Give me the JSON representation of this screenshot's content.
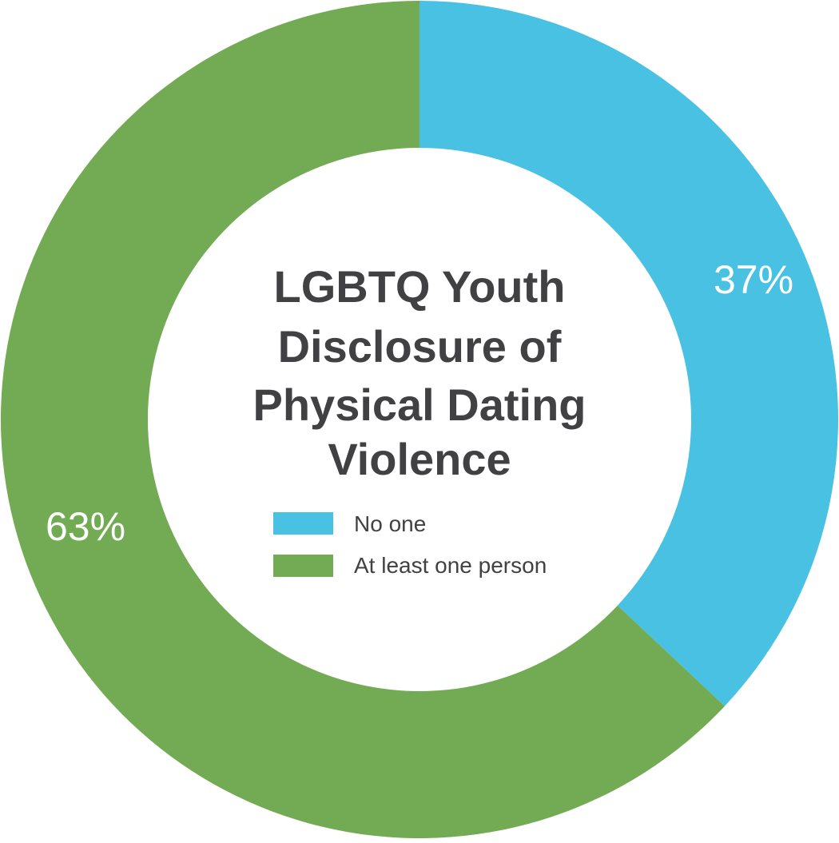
{
  "chart_data": {
    "type": "pie",
    "variant": "donut",
    "title_lines": [
      "LGBTQ Youth",
      "Disclosure of",
      "Physical Dating",
      "Violence"
    ],
    "categories": [
      "No one",
      "At least one person"
    ],
    "values": [
      37,
      63
    ],
    "value_labels": [
      "37%",
      "63%"
    ],
    "colors": [
      "#48C1E3",
      "#72AB53"
    ],
    "legend": {
      "placement": "center",
      "entries": [
        "No one",
        "At least one person"
      ]
    },
    "start_angle": "12 o'clock",
    "direction": "clockwise"
  }
}
